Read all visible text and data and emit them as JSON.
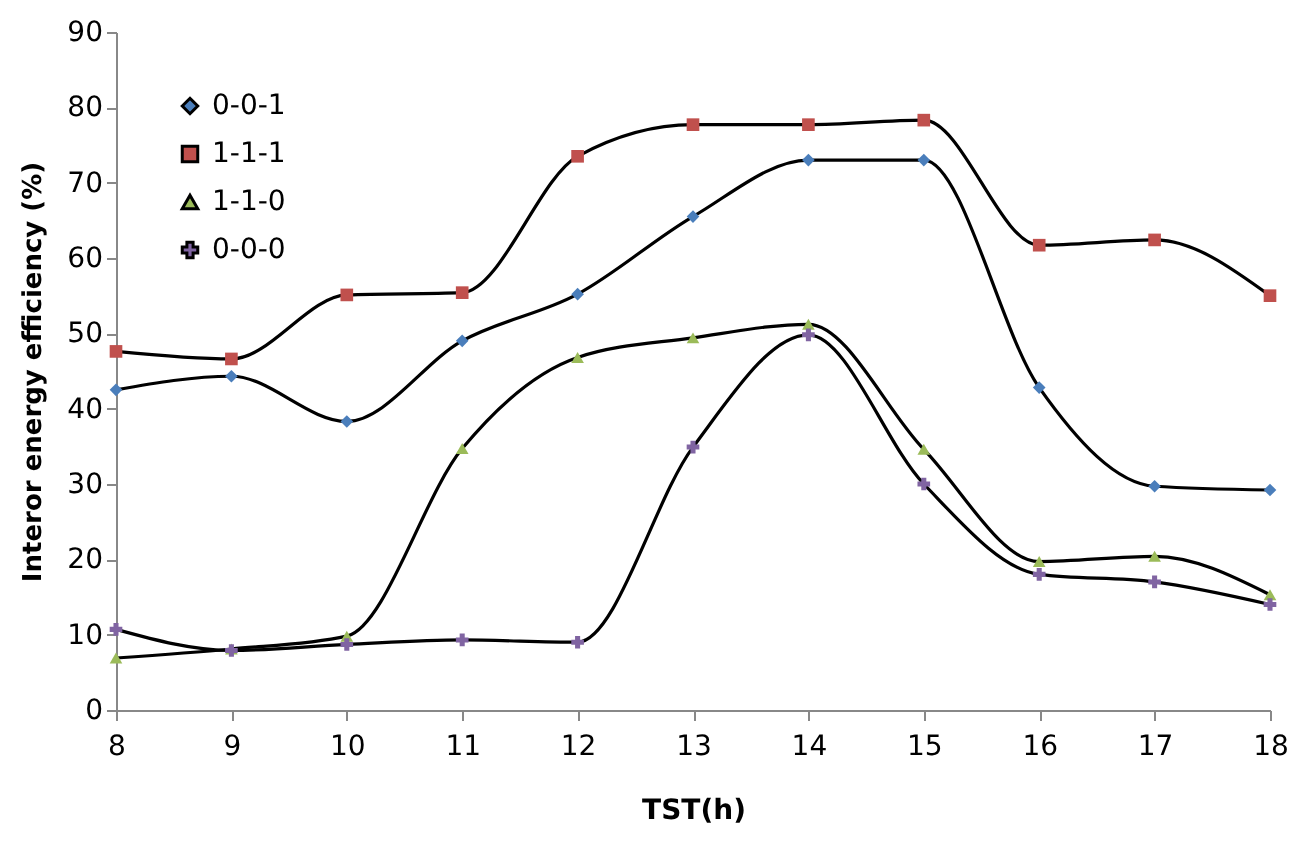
{
  "chart_data": {
    "type": "line",
    "xlabel": "TST(h)",
    "ylabel": "Interor energy efficiency (%)",
    "x": [
      8,
      9,
      10,
      11,
      12,
      13,
      14,
      15,
      16,
      17,
      18
    ],
    "series": [
      {
        "name": "0-0-1",
        "color": "#4a7ebb",
        "marker": "diamond",
        "values": [
          42.5,
          44.3,
          38.3,
          49,
          55.2,
          65.5,
          73,
          73,
          42.8,
          29.7,
          29.2
        ]
      },
      {
        "name": "1-1-1",
        "color": "#c0504d",
        "marker": "square",
        "values": [
          47.6,
          46.6,
          55.1,
          55.4,
          73.5,
          77.7,
          77.7,
          78.3,
          61.7,
          62.4,
          55
        ]
      },
      {
        "name": "1-1-0",
        "color": "#9bbb59",
        "marker": "triangle",
        "values": [
          6.9,
          8.1,
          9.8,
          34.7,
          46.8,
          49.4,
          51.2,
          34.6,
          19.7,
          20.4,
          15.3
        ]
      },
      {
        "name": "0-0-0",
        "color": "#8064a2",
        "marker": "cross",
        "values": [
          10.7,
          7.9,
          8.7,
          9.3,
          9,
          34.9,
          49.8,
          30,
          18,
          17,
          14
        ]
      }
    ],
    "xlim": [
      8,
      18
    ],
    "xticks": [
      8,
      9,
      10,
      11,
      12,
      13,
      14,
      15,
      16,
      17,
      18
    ],
    "ylim": [
      0,
      90
    ],
    "yticks": [
      0,
      10,
      20,
      30,
      40,
      50,
      60,
      70,
      80,
      90
    ],
    "grid": false,
    "legend": "top left",
    "line_style": "solid"
  }
}
